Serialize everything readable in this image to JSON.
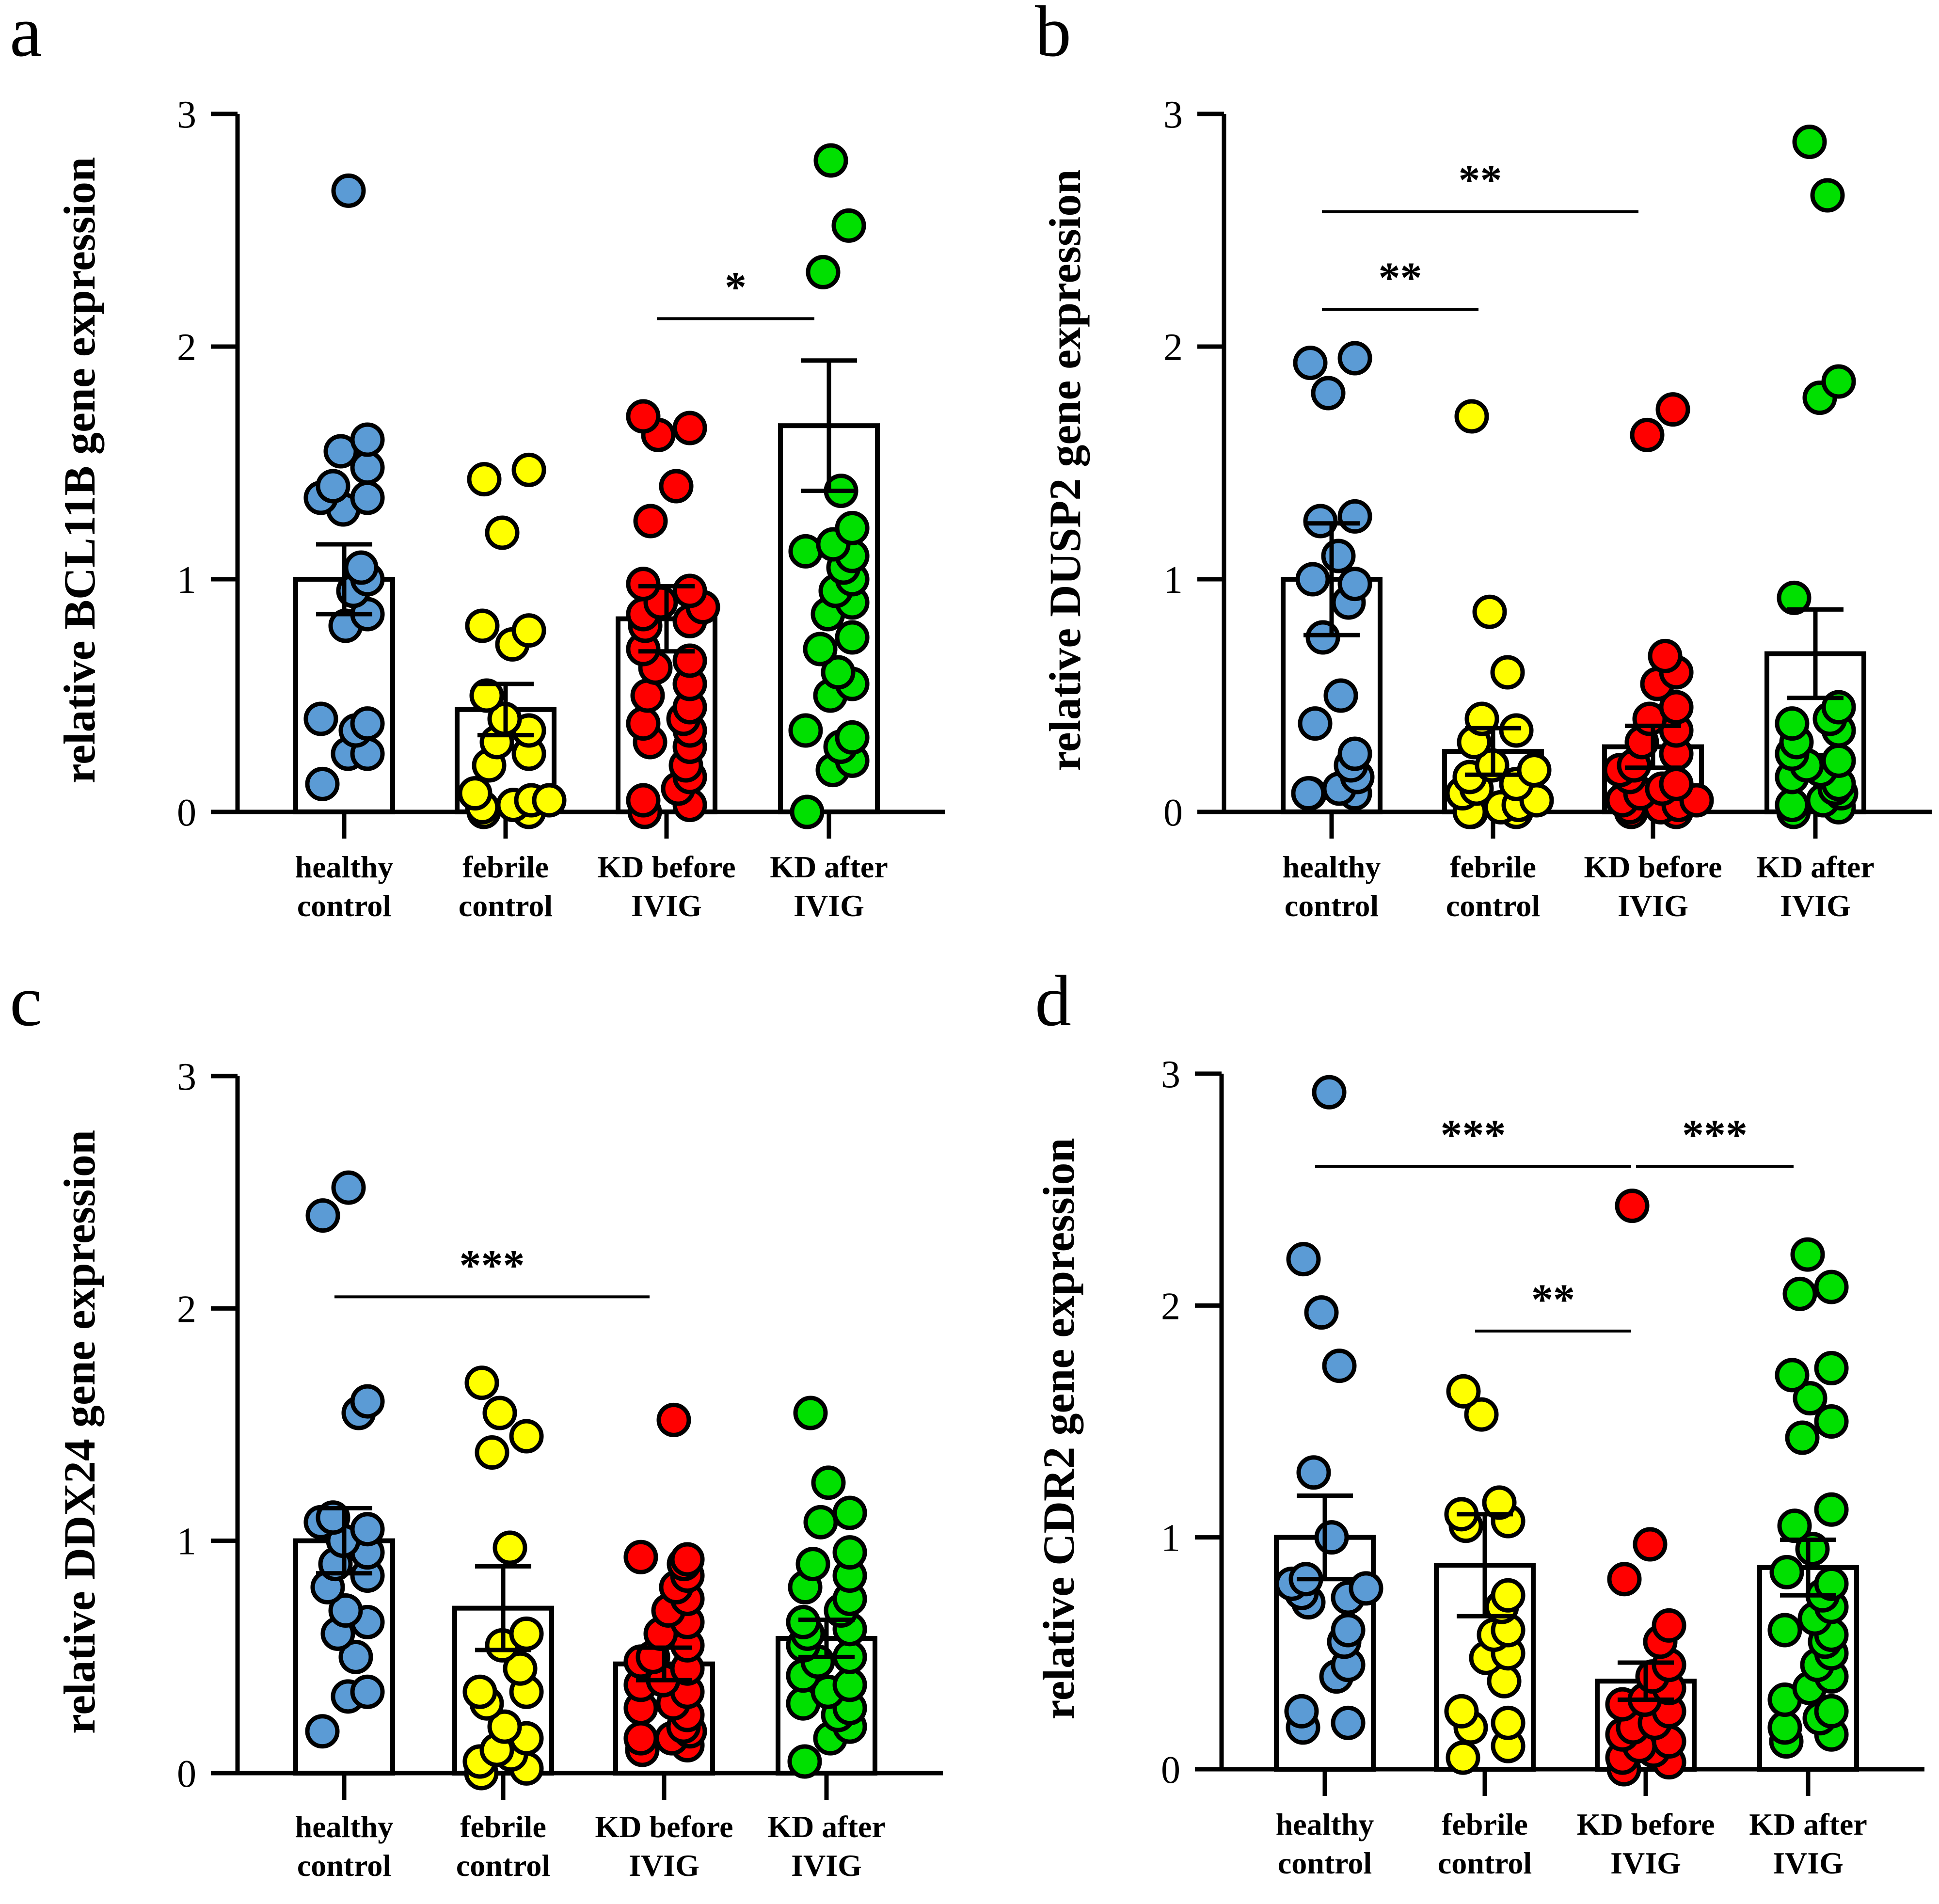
{
  "chart_data": [
    {
      "panel_letter": "a",
      "type": "bar",
      "ylabel": "relative BCL11B gene expression",
      "ylim": [
        0,
        3
      ],
      "yticks": [
        "0",
        "1",
        "2",
        "3"
      ],
      "categories": [
        [
          "healthy",
          "control"
        ],
        [
          "febrile",
          "control"
        ],
        [
          "KD before",
          "IVIG"
        ],
        [
          "KD after",
          "IVIG"
        ]
      ],
      "colors": [
        "#5b9bd5",
        "#ffff00",
        "#ff0000",
        "#00e000"
      ],
      "means": [
        1.0,
        0.44,
        0.83,
        1.66
      ],
      "sem": [
        0.15,
        0.11,
        0.14,
        0.28
      ],
      "points": [
        [
          2.67,
          1.6,
          1.55,
          1.48,
          1.4,
          1.35,
          1.35,
          1.3,
          1.05,
          1.0,
          0.95,
          0.85,
          0.8,
          0.4,
          0.38,
          0.35,
          0.25,
          0.25,
          0.12
        ],
        [
          1.47,
          1.43,
          1.2,
          0.8,
          0.78,
          0.72,
          0.5,
          0.4,
          0.35,
          0.3,
          0.25,
          0.2,
          0.08,
          0.05,
          0.05,
          0.03,
          0.02,
          0.0,
          0.0
        ],
        [
          1.7,
          1.65,
          1.62,
          1.4,
          1.25,
          0.98,
          0.95,
          0.9,
          0.88,
          0.85,
          0.82,
          0.8,
          0.7,
          0.65,
          0.62,
          0.55,
          0.5,
          0.45,
          0.4,
          0.38,
          0.35,
          0.3,
          0.28,
          0.2,
          0.15,
          0.1,
          0.05,
          0.03,
          0.0
        ],
        [
          2.8,
          2.52,
          2.32,
          1.38,
          1.22,
          1.15,
          1.12,
          1.1,
          1.05,
          1.0,
          0.95,
          0.9,
          0.85,
          0.75,
          0.7,
          0.6,
          0.55,
          0.5,
          0.35,
          0.32,
          0.28,
          0.22,
          0.18,
          0.0
        ]
      ],
      "significance": [
        {
          "from": 2,
          "to": 3,
          "y": 2.12,
          "label": "*"
        }
      ]
    },
    {
      "panel_letter": "b",
      "type": "bar",
      "ylabel": "relative DUSP2 gene expression",
      "ylim": [
        0,
        3
      ],
      "yticks": [
        "0",
        "1",
        "2",
        "3"
      ],
      "categories": [
        [
          "healthy",
          "control"
        ],
        [
          "febrile",
          "control"
        ],
        [
          "KD before",
          "IVIG"
        ],
        [
          "KD after",
          "IVIG"
        ]
      ],
      "colors": [
        "#5b9bd5",
        "#ffff00",
        "#ff0000",
        "#00e000"
      ],
      "means": [
        1.0,
        0.26,
        0.28,
        0.68
      ],
      "sem": [
        0.24,
        0.1,
        0.09,
        0.19
      ],
      "points": [
        [
          1.95,
          1.93,
          1.8,
          1.27,
          1.25,
          1.1,
          1.0,
          0.98,
          0.9,
          0.75,
          0.5,
          0.38,
          0.25,
          0.2,
          0.15,
          0.1,
          0.08,
          0.08,
          0.08
        ],
        [
          1.7,
          0.86,
          0.6,
          0.4,
          0.35,
          0.3,
          0.2,
          0.18,
          0.15,
          0.12,
          0.1,
          0.08,
          0.05,
          0.03,
          0.02,
          0.0,
          0.0,
          0.0
        ],
        [
          1.73,
          1.62,
          0.67,
          0.6,
          0.55,
          0.45,
          0.4,
          0.35,
          0.3,
          0.25,
          0.2,
          0.18,
          0.15,
          0.12,
          0.1,
          0.08,
          0.05,
          0.05,
          0.03,
          0.02,
          0.02,
          0.0,
          0.0
        ],
        [
          2.88,
          2.65,
          1.85,
          1.78,
          0.92,
          0.45,
          0.4,
          0.38,
          0.35,
          0.3,
          0.25,
          0.22,
          0.2,
          0.18,
          0.15,
          0.12,
          0.1,
          0.08,
          0.05,
          0.03,
          0.02,
          0.0
        ]
      ],
      "significance": [
        {
          "from": 0,
          "to": 2,
          "y": 2.58,
          "label": "**"
        },
        {
          "from": 0,
          "to": 1,
          "y": 2.16,
          "label": "**"
        }
      ]
    },
    {
      "panel_letter": "c",
      "type": "bar",
      "ylabel": "relative DDX24 gene expression",
      "ylim": [
        0,
        3
      ],
      "yticks": [
        "0",
        "1",
        "2",
        "3"
      ],
      "categories": [
        [
          "healthy",
          "control"
        ],
        [
          "febrile",
          "control"
        ],
        [
          "KD before",
          "IVIG"
        ],
        [
          "KD after",
          "IVIG"
        ]
      ],
      "colors": [
        "#5b9bd5",
        "#ffff00",
        "#ff0000",
        "#00e000"
      ],
      "means": [
        1.0,
        0.71,
        0.47,
        0.58
      ],
      "sem": [
        0.14,
        0.18,
        0.07,
        0.08
      ],
      "points": [
        [
          2.52,
          2.4,
          1.6,
          1.55,
          1.1,
          1.08,
          1.05,
          1.0,
          0.95,
          0.9,
          0.85,
          0.8,
          0.7,
          0.65,
          0.6,
          0.5,
          0.35,
          0.33,
          0.18
        ],
        [
          1.68,
          1.55,
          1.45,
          1.38,
          0.97,
          0.6,
          0.55,
          0.45,
          0.35,
          0.35,
          0.3,
          0.2,
          0.15,
          0.1,
          0.08,
          0.05,
          0.02,
          0.0
        ],
        [
          1.52,
          0.93,
          0.92,
          0.9,
          0.85,
          0.8,
          0.75,
          0.7,
          0.65,
          0.6,
          0.55,
          0.5,
          0.48,
          0.45,
          0.4,
          0.38,
          0.35,
          0.3,
          0.28,
          0.25,
          0.2,
          0.18,
          0.15,
          0.15,
          0.12,
          0.1
        ],
        [
          1.55,
          1.25,
          1.12,
          1.08,
          0.95,
          0.9,
          0.85,
          0.8,
          0.75,
          0.7,
          0.65,
          0.62,
          0.6,
          0.55,
          0.5,
          0.48,
          0.42,
          0.38,
          0.35,
          0.3,
          0.28,
          0.25,
          0.2,
          0.15,
          0.05
        ]
      ],
      "significance": [
        {
          "from": 0,
          "to": 2,
          "y": 2.05,
          "label": "***"
        }
      ]
    },
    {
      "panel_letter": "d",
      "type": "bar",
      "ylabel": "relative CDR2 gene expression",
      "ylim": [
        0,
        3
      ],
      "yticks": [
        "0",
        "1",
        "2",
        "3"
      ],
      "categories": [
        [
          "healthy",
          "control"
        ],
        [
          "febrile",
          "control"
        ],
        [
          "KD before",
          "IVIG"
        ],
        [
          "KD after",
          "IVIG"
        ]
      ],
      "colors": [
        "#5b9bd5",
        "#ffff00",
        "#ff0000",
        "#00e000"
      ],
      "means": [
        1.0,
        0.88,
        0.38,
        0.87
      ],
      "sem": [
        0.18,
        0.22,
        0.08,
        0.12
      ],
      "points": [
        [
          2.92,
          2.2,
          1.97,
          1.74,
          1.28,
          1.0,
          0.82,
          0.8,
          0.78,
          0.76,
          0.74,
          0.72,
          0.6,
          0.55,
          0.45,
          0.4,
          0.25,
          0.2,
          0.18
        ],
        [
          1.63,
          1.53,
          1.15,
          1.1,
          1.07,
          1.05,
          0.75,
          0.7,
          0.6,
          0.58,
          0.5,
          0.48,
          0.38,
          0.25,
          0.2,
          0.18,
          0.1,
          0.05
        ],
        [
          2.43,
          0.97,
          0.82,
          0.62,
          0.55,
          0.45,
          0.4,
          0.35,
          0.3,
          0.28,
          0.25,
          0.2,
          0.18,
          0.15,
          0.12,
          0.1,
          0.08,
          0.05,
          0.03,
          0.0
        ],
        [
          2.22,
          2.08,
          2.05,
          1.73,
          1.7,
          1.6,
          1.5,
          1.43,
          1.12,
          1.05,
          0.95,
          0.85,
          0.8,
          0.75,
          0.7,
          0.65,
          0.6,
          0.58,
          0.55,
          0.5,
          0.45,
          0.4,
          0.35,
          0.3,
          0.25,
          0.22,
          0.18,
          0.15,
          0.12
        ]
      ],
      "significance": [
        {
          "from": 0,
          "to": 2,
          "y": 2.6,
          "label": "***"
        },
        {
          "from": 2,
          "to": 3,
          "y": 2.6,
          "label": "***"
        },
        {
          "from": 1,
          "to": 2,
          "y": 1.89,
          "label": "**"
        }
      ]
    }
  ]
}
